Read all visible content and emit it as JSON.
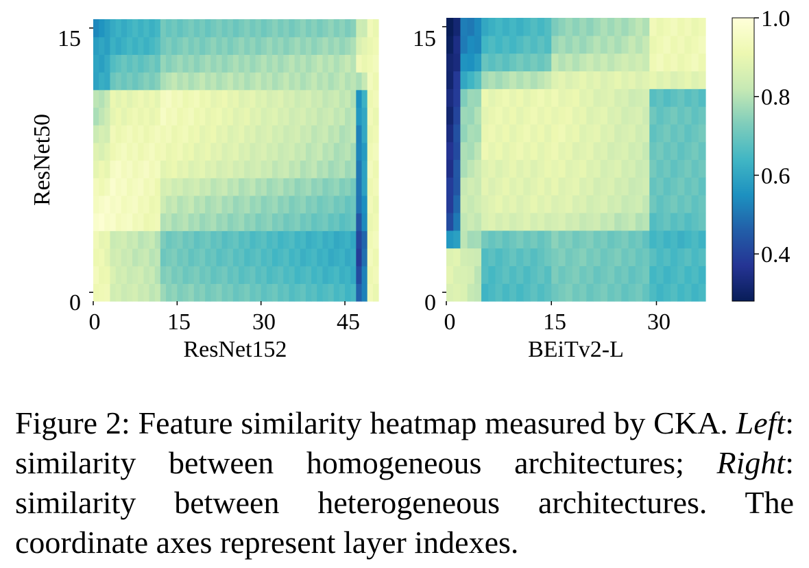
{
  "chart_data": [
    {
      "type": "heatmap",
      "panel": "Left",
      "xlabel": "ResNet152",
      "ylabel": "ResNet50",
      "x_layers": 51,
      "y_layers": 16,
      "x_ticks": [
        0,
        15,
        30,
        45
      ],
      "y_ticks": [
        0,
        15
      ],
      "colormap": "YlGnBu",
      "value_range": [
        0.28,
        1.0
      ],
      "rows_description_order": "row 0 = bottom",
      "approx_values": {
        "x_segments": [
          0,
          3,
          12,
          47,
          49,
          51
        ],
        "rows": [
          {
            "y": 0,
            "v": [
              0.93,
              0.85,
              0.75,
              0.45,
              0.92
            ]
          },
          {
            "y": 1,
            "v": [
              0.93,
              0.85,
              0.73,
              0.42,
              0.92
            ]
          },
          {
            "y": 2,
            "v": [
              0.92,
              0.84,
              0.72,
              0.4,
              0.92
            ]
          },
          {
            "y": 3,
            "v": [
              0.91,
              0.84,
              0.72,
              0.4,
              0.92
            ]
          },
          {
            "y": 4,
            "v": [
              0.97,
              0.96,
              0.8,
              0.45,
              0.92
            ]
          },
          {
            "y": 5,
            "v": [
              0.96,
              0.96,
              0.82,
              0.48,
              0.92
            ]
          },
          {
            "y": 6,
            "v": [
              0.93,
              0.96,
              0.85,
              0.5,
              0.92
            ]
          },
          {
            "y": 7,
            "v": [
              0.9,
              0.95,
              0.9,
              0.52,
              0.92
            ]
          },
          {
            "y": 8,
            "v": [
              0.86,
              0.93,
              0.92,
              0.52,
              0.92
            ]
          },
          {
            "y": 9,
            "v": [
              0.83,
              0.92,
              0.93,
              0.53,
              0.92
            ]
          },
          {
            "y": 10,
            "v": [
              0.8,
              0.9,
              0.94,
              0.55,
              0.92
            ]
          },
          {
            "y": 11,
            "v": [
              0.8,
              0.89,
              0.94,
              0.55,
              0.92
            ]
          },
          {
            "y": 12,
            "v": [
              0.6,
              0.7,
              0.8,
              0.8,
              0.92
            ]
          },
          {
            "y": 13,
            "v": [
              0.58,
              0.68,
              0.75,
              0.92,
              0.92
            ]
          },
          {
            "y": 14,
            "v": [
              0.58,
              0.62,
              0.72,
              0.87,
              0.92
            ]
          },
          {
            "y": 15,
            "v": [
              0.55,
              0.62,
              0.7,
              0.82,
              0.92
            ]
          }
        ]
      }
    },
    {
      "type": "heatmap",
      "panel": "Right",
      "xlabel": "BEiTv2-L",
      "ylabel": "",
      "x_layers": 37,
      "y_layers": 16,
      "x_ticks": [
        0,
        15,
        30
      ],
      "y_ticks": [
        0,
        15
      ],
      "colormap": "YlGnBu",
      "value_range": [
        0.28,
        1.0
      ],
      "approx_values": {
        "x_segments": [
          0,
          2,
          5,
          15,
          29,
          37
        ],
        "rows": [
          {
            "y": 0,
            "v": [
              0.88,
              0.85,
              0.65,
              0.72,
              0.65
            ]
          },
          {
            "y": 1,
            "v": [
              0.88,
              0.86,
              0.66,
              0.72,
              0.65
            ]
          },
          {
            "y": 2,
            "v": [
              0.88,
              0.86,
              0.67,
              0.73,
              0.66
            ]
          },
          {
            "y": 3,
            "v": [
              0.55,
              0.8,
              0.7,
              0.73,
              0.64
            ]
          },
          {
            "y": 4,
            "v": [
              0.42,
              0.82,
              0.86,
              0.85,
              0.68
            ]
          },
          {
            "y": 5,
            "v": [
              0.4,
              0.82,
              0.88,
              0.88,
              0.7
            ]
          },
          {
            "y": 6,
            "v": [
              0.38,
              0.82,
              0.88,
              0.89,
              0.7
            ]
          },
          {
            "y": 7,
            "v": [
              0.36,
              0.8,
              0.88,
              0.9,
              0.7
            ]
          },
          {
            "y": 8,
            "v": [
              0.35,
              0.78,
              0.9,
              0.9,
              0.7
            ]
          },
          {
            "y": 9,
            "v": [
              0.34,
              0.76,
              0.9,
              0.91,
              0.7
            ]
          },
          {
            "y": 10,
            "v": [
              0.33,
              0.75,
              0.9,
              0.91,
              0.7
            ]
          },
          {
            "y": 11,
            "v": [
              0.33,
              0.73,
              0.9,
              0.91,
              0.68
            ]
          },
          {
            "y": 12,
            "v": [
              0.32,
              0.62,
              0.78,
              0.88,
              0.88
            ]
          },
          {
            "y": 13,
            "v": [
              0.3,
              0.55,
              0.68,
              0.8,
              0.92
            ]
          },
          {
            "y": 14,
            "v": [
              0.29,
              0.52,
              0.64,
              0.76,
              0.92
            ]
          },
          {
            "y": 15,
            "v": [
              0.28,
              0.5,
              0.62,
              0.74,
              0.92
            ]
          }
        ]
      }
    }
  ],
  "colorbar": {
    "ticks": [
      "0.4",
      "0.6",
      "0.8",
      "1.0"
    ],
    "tick_values": [
      0.4,
      0.6,
      0.8,
      1.0
    ],
    "range": [
      0.28,
      1.0
    ],
    "stops": [
      "#081d58",
      "#253494",
      "#225ea8",
      "#1d91c0",
      "#41b6c4",
      "#7fcdbb",
      "#c7e9b4",
      "#edf8b1",
      "#ffffd9"
    ]
  },
  "caption": {
    "label": "Figure 2:",
    "text1": "Feature similarity heatmap measured by CKA.",
    "left": "Left",
    "text2": ": similarity between homogeneous architectures;",
    "right": "Right",
    "text3": ": similarity between heterogeneous architectures. The coordinate axes represent layer indexes."
  }
}
